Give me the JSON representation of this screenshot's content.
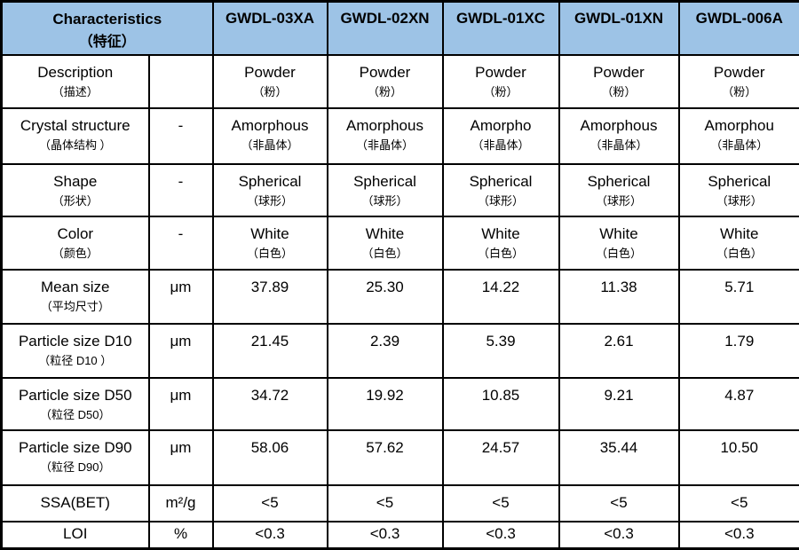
{
  "table": {
    "colors": {
      "header_bg": "#9dc3e6",
      "border": "#000000",
      "text": "#000000"
    },
    "header": {
      "characteristics_en": "Characteristics",
      "characteristics_zh": "（特征）",
      "products": [
        "GWDL-03XA",
        "GWDL-02XN",
        "GWDL-01XC",
        "GWDL-01XN",
        "GWDL-006A"
      ]
    },
    "rows": [
      {
        "label_en": "Description",
        "label_zh": "（描述）",
        "unit": "",
        "values_en": [
          "Powder",
          "Powder",
          "Powder",
          "Powder",
          "Powder"
        ],
        "values_zh": [
          "（粉）",
          "（粉）",
          "（粉）",
          "（粉）",
          "（粉）"
        ]
      },
      {
        "label_en": "Crystal structure",
        "label_zh": "（晶体结构 ）",
        "unit": "-",
        "values_en": [
          "Amorphous",
          "Amorphous",
          "Amorpho",
          "Amorphous",
          "Amorphou"
        ],
        "values_zh": [
          "（非晶体）",
          "（非晶体）",
          "（非晶体）",
          "（非晶体）",
          "（非晶体）"
        ]
      },
      {
        "label_en": "Shape",
        "label_zh": "（形状）",
        "unit": "-",
        "values_en": [
          "Spherical",
          "Spherical",
          "Spherical",
          "Spherical",
          "Spherical"
        ],
        "values_zh": [
          "（球形）",
          "（球形）",
          "（球形）",
          "（球形）",
          "（球形）"
        ]
      },
      {
        "label_en": "Color",
        "label_zh": "（颜色）",
        "unit": "-",
        "values_en": [
          "White",
          "White",
          "White",
          "White",
          "White"
        ],
        "values_zh": [
          "（白色）",
          "（白色）",
          "（白色）",
          "（白色）",
          "（白色）"
        ]
      },
      {
        "label_en": "Mean size",
        "label_zh": "（平均尺寸）",
        "unit": "μm",
        "values_en": [
          "37.89",
          "25.30",
          "14.22",
          "11.38",
          "5.71"
        ],
        "values_zh": []
      },
      {
        "label_en": "Particle size D10",
        "label_zh": "（粒径  D10  ）",
        "unit": "μm",
        "values_en": [
          "21.45",
          "2.39",
          "5.39",
          "2.61",
          "1.79"
        ],
        "values_zh": []
      },
      {
        "label_en": "Particle size D50",
        "label_zh": "（粒径  D50）",
        "unit": "μm",
        "values_en": [
          "34.72",
          "19.92",
          "10.85",
          "9.21",
          "4.87"
        ],
        "values_zh": []
      },
      {
        "label_en": "Particle size D90",
        "label_zh": "（粒径  D90）",
        "unit": "μm",
        "values_en": [
          "58.06",
          "57.62",
          "24.57",
          "35.44",
          "10.50"
        ],
        "values_zh": []
      },
      {
        "label_en": "SSA(BET)",
        "label_zh": "",
        "unit": "m²/g",
        "values_en": [
          "<5",
          "<5",
          "<5",
          "<5",
          "<5"
        ],
        "values_zh": []
      },
      {
        "label_en": "LOI",
        "label_zh": "",
        "unit": "%",
        "values_en": [
          "<0.3",
          "<0.3",
          "<0.3",
          "<0.3",
          "<0.3"
        ],
        "values_zh": []
      }
    ]
  }
}
